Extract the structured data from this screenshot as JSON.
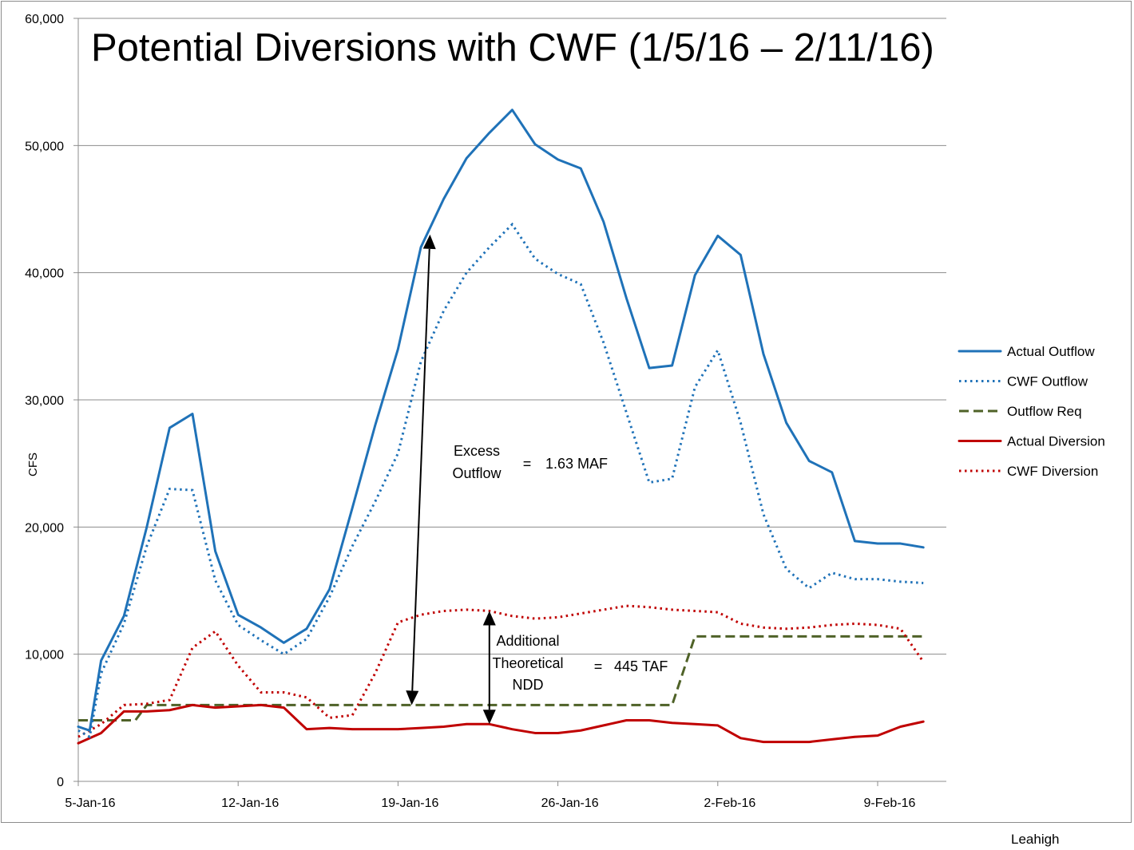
{
  "chart_data": {
    "type": "line",
    "title": "Potential Diversions with CWF (1/5/16 – 2/11/16)",
    "xlabel": "",
    "ylabel": "CFS",
    "ylim": [
      0,
      60000
    ],
    "y_ticks": [
      0,
      10000,
      20000,
      30000,
      40000,
      50000,
      60000
    ],
    "y_tick_labels": [
      "0",
      "10,000",
      "20,000",
      "30,000",
      "40,000",
      "50,000",
      "60,000"
    ],
    "x_ticks": [
      0,
      7,
      14,
      21,
      28,
      35
    ],
    "x_tick_labels": [
      "5-Jan-16",
      "12-Jan-16",
      "19-Jan-16",
      "26-Jan-16",
      "2-Feb-16",
      "9-Feb-16"
    ],
    "x_range": [
      0,
      38
    ],
    "grid": "horizontal",
    "legend_position": "right",
    "series": [
      {
        "name": "Actual Outflow",
        "color": "#1f72b8",
        "style": "solid",
        "x": [
          0,
          0.5,
          1,
          2,
          3,
          4,
          5,
          6,
          7,
          8,
          9,
          10,
          11,
          12,
          13,
          14,
          15,
          16,
          17,
          18,
          19,
          20,
          21,
          22,
          23,
          24,
          25,
          26,
          27,
          28,
          29,
          30,
          31,
          32,
          33,
          34,
          35,
          36,
          37
        ],
        "values": [
          4300,
          4000,
          9500,
          13000,
          20000,
          27800,
          28900,
          18100,
          13100,
          12100,
          10900,
          12000,
          15100,
          21500,
          28000,
          34000,
          42000,
          45800,
          49000,
          51000,
          52800,
          50100,
          48900,
          48200,
          44000,
          38000,
          32500,
          32700,
          39800,
          42900,
          41400,
          33600,
          28200,
          25200,
          24300,
          18900,
          18700,
          18700,
          18400
        ]
      },
      {
        "name": "CWF Outflow",
        "color": "#1f72b8",
        "style": "dotted",
        "x": [
          0,
          0.5,
          1,
          2,
          3,
          4,
          5,
          6,
          7,
          8,
          9,
          10,
          11,
          12,
          13,
          14,
          15,
          16,
          17,
          18,
          19,
          20,
          21,
          22,
          23,
          24,
          25,
          26,
          27,
          28,
          29,
          30,
          31,
          32,
          33,
          34,
          35,
          36,
          37
        ],
        "values": [
          4000,
          3500,
          8500,
          12400,
          18500,
          23000,
          22900,
          15800,
          12300,
          11100,
          10000,
          11200,
          14500,
          18500,
          22000,
          25800,
          33000,
          37000,
          40000,
          42000,
          43800,
          41100,
          39900,
          39100,
          34500,
          29000,
          23500,
          23800,
          31000,
          33900,
          28200,
          21000,
          16700,
          15200,
          16400,
          15900,
          15900,
          15700,
          15600
        ]
      },
      {
        "name": "Outflow Req",
        "color": "#4f6228",
        "style": "dashed",
        "x": [
          0,
          1,
          2,
          2.5,
          3,
          4,
          5,
          6,
          7,
          8,
          9,
          10,
          11,
          12,
          13,
          14,
          15,
          16,
          17,
          18,
          19,
          20,
          21,
          22,
          23,
          24,
          25,
          26,
          27,
          28,
          29,
          30,
          31,
          32,
          33,
          34,
          35,
          36,
          37
        ],
        "values": [
          4800,
          4800,
          4800,
          4800,
          6000,
          6000,
          6000,
          6000,
          6000,
          6000,
          6000,
          6000,
          6000,
          6000,
          6000,
          6000,
          6000,
          6000,
          6000,
          6000,
          6000,
          6000,
          6000,
          6000,
          6000,
          6000,
          6000,
          6000,
          11400,
          11400,
          11400,
          11400,
          11400,
          11400,
          11400,
          11400,
          11400,
          11400,
          11400
        ]
      },
      {
        "name": "Actual Diversion",
        "color": "#c00000",
        "style": "solid",
        "x": [
          0,
          1,
          2,
          3,
          4,
          5,
          6,
          7,
          8,
          9,
          10,
          11,
          12,
          13,
          14,
          15,
          16,
          17,
          18,
          19,
          20,
          21,
          22,
          23,
          24,
          25,
          26,
          27,
          28,
          29,
          30,
          31,
          32,
          33,
          34,
          35,
          36,
          37
        ],
        "values": [
          3000,
          3800,
          5500,
          5500,
          5600,
          6000,
          5800,
          5900,
          6000,
          5800,
          4100,
          4200,
          4100,
          4100,
          4100,
          4200,
          4300,
          4500,
          4500,
          4100,
          3800,
          3800,
          4000,
          4400,
          4800,
          4800,
          4600,
          4500,
          4400,
          3400,
          3100,
          3100,
          3100,
          3300,
          3500,
          3600,
          4300,
          4700
        ]
      },
      {
        "name": "CWF Diversion",
        "color": "#c00000",
        "style": "dotted",
        "x": [
          0,
          1,
          2,
          3,
          4,
          5,
          6,
          7,
          8,
          9,
          10,
          11,
          12,
          13,
          14,
          15,
          16,
          17,
          18,
          19,
          20,
          21,
          22,
          23,
          24,
          25,
          26,
          27,
          28,
          29,
          30,
          31,
          32,
          33,
          34,
          35,
          36,
          37
        ],
        "values": [
          3500,
          4500,
          6000,
          6100,
          6400,
          10500,
          11800,
          9100,
          7000,
          7000,
          6600,
          5000,
          5200,
          8500,
          12500,
          13100,
          13400,
          13500,
          13400,
          13000,
          12800,
          12900,
          13200,
          13500,
          13800,
          13700,
          13500,
          13400,
          13300,
          12400,
          12100,
          12000,
          12100,
          12300,
          12400,
          12300,
          12000,
          9400
        ]
      }
    ],
    "annotations": {
      "excess_line1": "Excess",
      "excess_line2": "Outflow",
      "excess_eq": "=",
      "excess_value": "1.63 MAF",
      "ndd_line1": "Additional",
      "ndd_line2": "Theoretical",
      "ndd_line3": "NDD",
      "ndd_eq": "=",
      "ndd_value": "445 TAF",
      "excess_arrow_x": [
        15.4,
        14.6
      ],
      "excess_arrow_y": [
        43000,
        6000
      ],
      "ndd_arrow_x": [
        18.0,
        18.0
      ],
      "ndd_arrow_y": [
        13400,
        4500
      ]
    }
  },
  "credit": "Leahigh"
}
